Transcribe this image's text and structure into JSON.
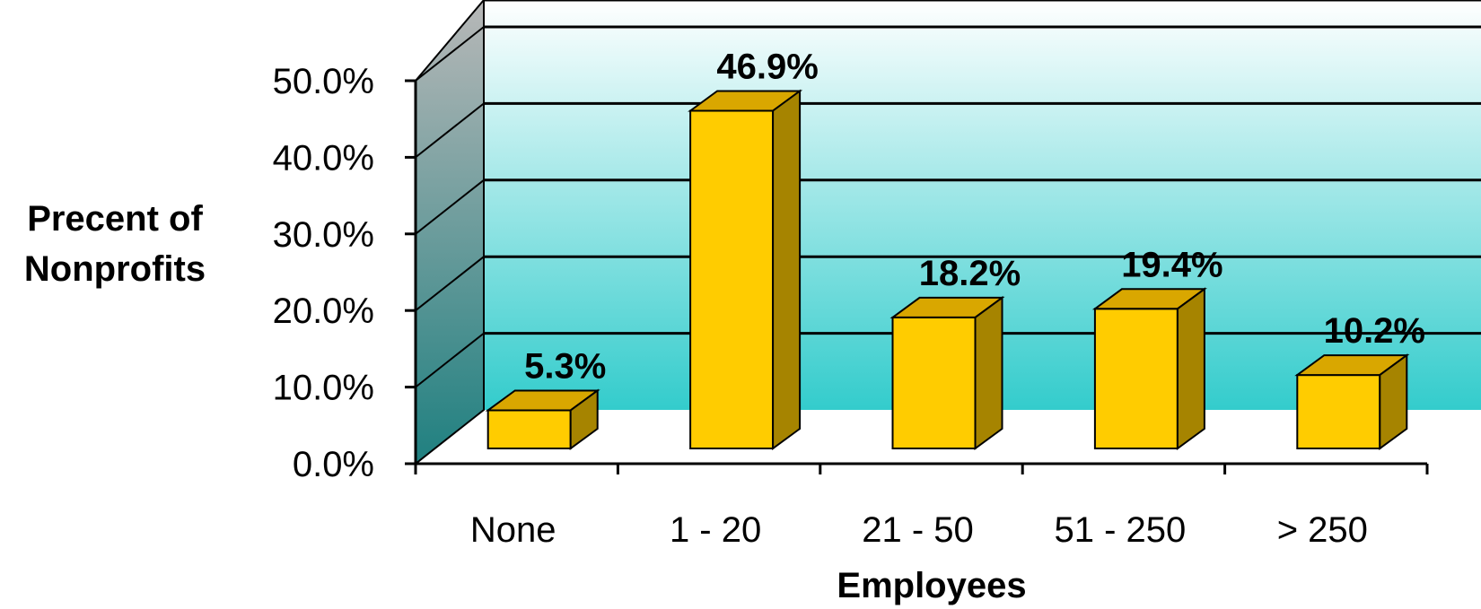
{
  "chart_data": {
    "type": "bar",
    "categories": [
      "None",
      "1 - 20",
      "21 - 50",
      "51 - 250",
      "> 250"
    ],
    "values": [
      5.3,
      46.9,
      18.2,
      19.4,
      10.2
    ],
    "value_labels": [
      "5.3%",
      "46.9%",
      "18.2%",
      "19.4%",
      "10.2%"
    ],
    "xlabel": "Employees",
    "ylabel": [
      "Precent of",
      "Nonprofits"
    ],
    "ylim": [
      0,
      50
    ],
    "yticks": [
      "0.0%",
      "10.0%",
      "20.0%",
      "30.0%",
      "40.0%",
      "50.0%"
    ],
    "grid": true,
    "legend": "none",
    "colors": {
      "bar_front": "#FFCC00",
      "bar_top": "#D9A700",
      "bar_side": "#A68400",
      "wall_top": "#FFFFFF",
      "wall_bottom": "#33CCCC",
      "side_wall_top": "#B0B0B0",
      "side_wall_bottom": "#1F8080"
    }
  }
}
